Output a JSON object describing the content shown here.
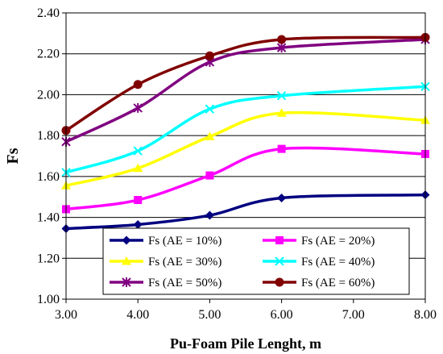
{
  "chart_data": {
    "type": "line",
    "xlabel": "Pu-Foam Pile Lenght, m",
    "ylabel": "Fs",
    "xlim": [
      3,
      8
    ],
    "ylim": [
      1.0,
      2.4
    ],
    "xticks": [
      3,
      4,
      5,
      6,
      7,
      8
    ],
    "xtick_labels": [
      "3.00",
      "4.00",
      "5.00",
      "6.00",
      "7.00",
      "8.00"
    ],
    "yticks": [
      1.0,
      1.2,
      1.4,
      1.6,
      1.8,
      2.0,
      2.2,
      2.4
    ],
    "ytick_labels": [
      "1.00",
      "1.20",
      "1.40",
      "1.60",
      "1.80",
      "2.00",
      "2.20",
      "2.40"
    ],
    "grid": "horizontal",
    "smooth": true,
    "legend_placement": "bottom-center",
    "x": [
      3,
      4,
      5,
      6,
      8
    ],
    "series": [
      {
        "name": "Fs (AE = 10%)",
        "color": "#000080",
        "marker": "diamond",
        "values": [
          1.345,
          1.365,
          1.41,
          1.495,
          1.51
        ]
      },
      {
        "name": "Fs (AE = 20%)",
        "color": "#FF00FF",
        "marker": "square",
        "values": [
          1.44,
          1.485,
          1.605,
          1.735,
          1.71
        ]
      },
      {
        "name": "Fs (AE = 30%)",
        "color": "#FFFF00",
        "marker": "triangle",
        "values": [
          1.555,
          1.64,
          1.795,
          1.91,
          1.875
        ]
      },
      {
        "name": "Fs (AE = 40%)",
        "color": "#00FFFF",
        "marker": "x",
        "values": [
          1.62,
          1.725,
          1.93,
          1.995,
          2.04
        ]
      },
      {
        "name": "Fs (AE = 50%)",
        "color": "#800080",
        "marker": "asterisk",
        "values": [
          1.77,
          1.935,
          2.16,
          2.23,
          2.27
        ]
      },
      {
        "name": "Fs (AE = 60%)",
        "color": "#800000",
        "marker": "circle",
        "values": [
          1.825,
          2.05,
          2.19,
          2.27,
          2.28
        ]
      }
    ]
  }
}
